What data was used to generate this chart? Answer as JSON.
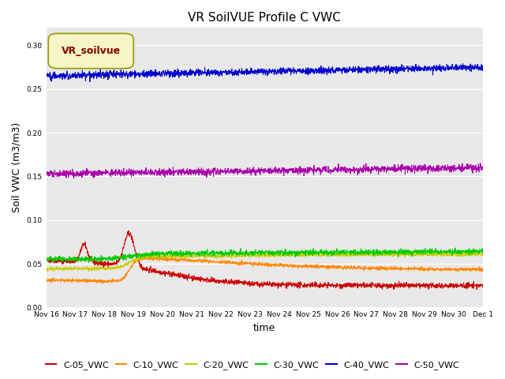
{
  "title": "VR SoilVUE Profile C VWC",
  "xlabel": "time",
  "ylabel": "Soil VWC (m3/m3)",
  "ylim": [
    0.0,
    0.32
  ],
  "yticks": [
    0.0,
    0.05,
    0.1,
    0.15,
    0.2,
    0.25,
    0.3
  ],
  "bg_color": "#e8e8e8",
  "series": {
    "C-05_VWC": {
      "color": "#cc0000"
    },
    "C-10_VWC": {
      "color": "#ff8800"
    },
    "C-20_VWC": {
      "color": "#cccc00"
    },
    "C-30_VWC": {
      "color": "#00cc00"
    },
    "C-40_VWC": {
      "color": "#0000cc"
    },
    "C-50_VWC": {
      "color": "#aa00aa"
    }
  },
  "tick_labels": [
    "Nov 16",
    "Nov 17",
    "Nov 18",
    "Nov 19",
    "Nov 20",
    "Nov 21",
    "Nov 22",
    "Nov 23",
    "Nov 24",
    "Nov 25",
    "Nov 26",
    "Nov 27",
    "Nov 28",
    "Nov 29",
    "Nov 30",
    "Dec 1"
  ],
  "legend_label": "VR_soilvue",
  "legend_box_facecolor": "#f5f5c8",
  "legend_box_edgecolor": "#999900",
  "legend_text_color": "#880000"
}
